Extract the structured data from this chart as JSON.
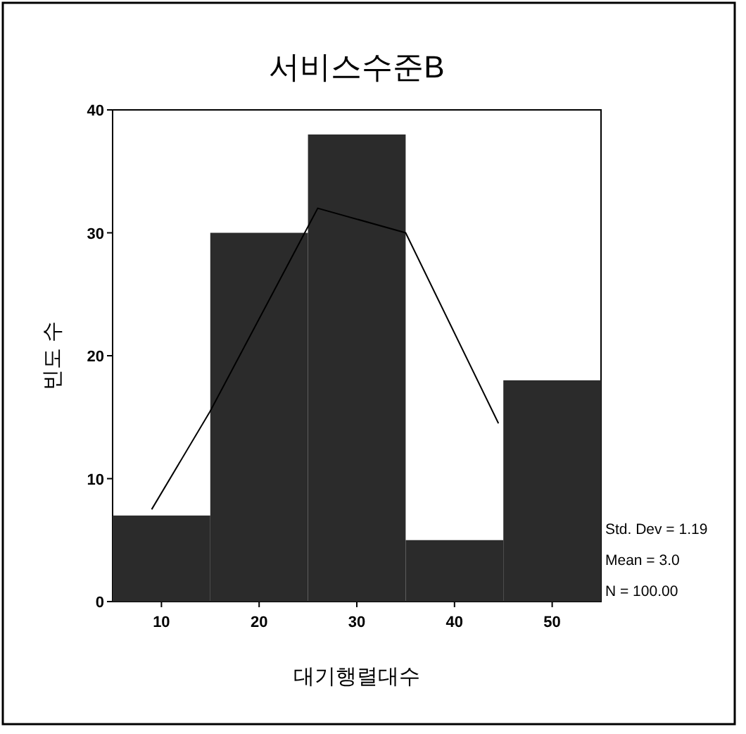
{
  "chart_data": {
    "type": "histogram",
    "title": "서비스수준B",
    "xlabel": "대기행렬대수",
    "ylabel": "빈도 수",
    "bins": [
      5,
      15,
      25,
      35,
      45,
      55
    ],
    "series": [
      {
        "color": "#2b2b2b",
        "values": [
          7,
          30,
          38,
          5,
          18
        ]
      },
      {
        "type": "line",
        "color": "#000000",
        "x": [
          9,
          15,
          25,
          26,
          35,
          44.5
        ],
        "values": [
          7.5,
          15.5,
          30.5,
          32,
          30,
          14.5
        ]
      }
    ],
    "xlim": [
      5,
      55
    ],
    "xticks": [
      10,
      20,
      30,
      40,
      50
    ],
    "ylim": [
      0,
      40
    ],
    "yticks": [
      0,
      10,
      20,
      30,
      40
    ],
    "grid": false,
    "annotations": [
      "Std. Dev = 1.19",
      "Mean = 3.0",
      "N = 100.00"
    ]
  }
}
